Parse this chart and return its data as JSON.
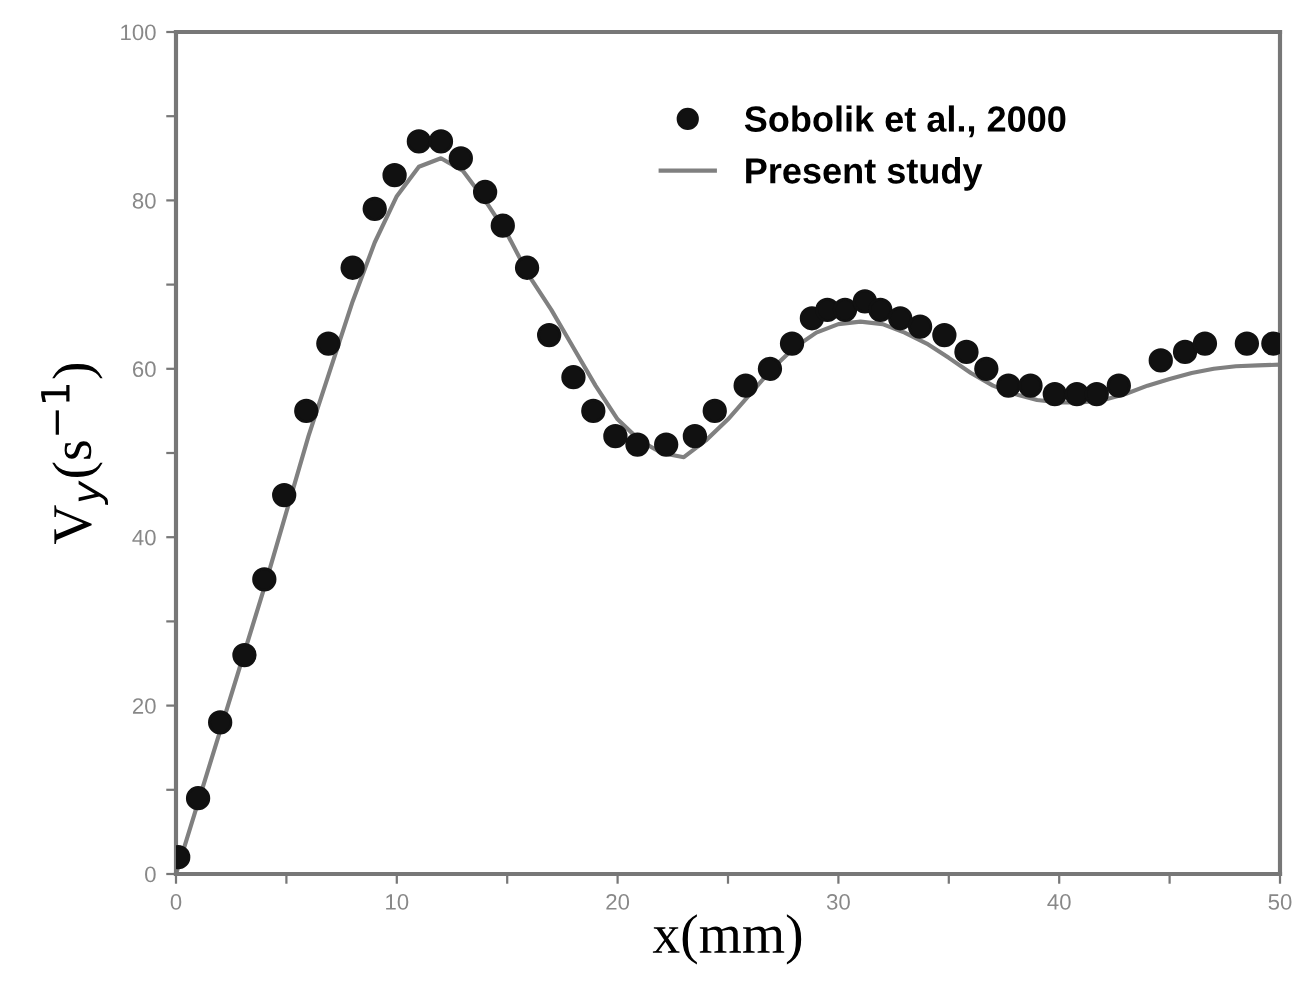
{
  "chart_data": {
    "type": "scatter",
    "xlabel": "x(mm)",
    "ylabel": "V$_{y}$(s$^{−1}$)",
    "xlim": [
      0,
      50
    ],
    "ylim": [
      0,
      100
    ],
    "xticks": [
      0,
      {
        "value": 5,
        "label": null
      },
      10,
      {
        "value": 15,
        "label": null
      },
      20,
      {
        "value": 25,
        "label": null
      },
      30,
      {
        "value": 35,
        "label": null
      },
      40,
      {
        "value": 45,
        "label": null
      },
      50
    ],
    "yticks": [
      0,
      {
        "value": 10,
        "label": null
      },
      20,
      {
        "value": 30,
        "label": null
      },
      40,
      {
        "value": 50,
        "label": null
      },
      60,
      {
        "value": 70,
        "label": null
      },
      80,
      {
        "value": 90,
        "label": null
      },
      100
    ],
    "grid": false,
    "legend": "top right",
    "series": [
      {
        "name": "Sobolik et al., 2000",
        "marker": "circle",
        "color": "#111111",
        "x": [
          0.1,
          1.0,
          2.0,
          3.1,
          4.0,
          4.9,
          5.9,
          6.9,
          8.0,
          9.0,
          9.9,
          11.0,
          12.0,
          12.9,
          14.0,
          14.8,
          15.9,
          16.9,
          18.0,
          18.9,
          19.9,
          20.9,
          22.2,
          23.5,
          24.4,
          25.8,
          26.9,
          27.9,
          28.8,
          29.5,
          30.3,
          31.2,
          31.9,
          32.8,
          33.7,
          34.8,
          35.8,
          36.7,
          37.7,
          38.7,
          39.8,
          40.8,
          41.7,
          42.7,
          44.6,
          45.7,
          46.6,
          48.5,
          49.7
        ],
        "values": [
          2,
          9,
          18,
          26,
          35,
          45,
          55,
          63,
          72,
          79,
          83,
          87,
          87,
          85,
          81,
          77,
          72,
          64,
          59,
          55,
          52,
          51,
          51,
          52,
          55,
          58,
          60,
          63,
          66,
          67,
          67,
          68,
          67,
          66,
          65,
          64,
          62,
          60,
          58,
          58,
          57,
          57,
          57,
          58,
          61,
          62,
          63,
          63,
          63
        ]
      },
      {
        "name": "Present study",
        "type": "line",
        "marker": "none",
        "line_style": "solid",
        "color": "#808080",
        "x": [
          0,
          2,
          4,
          6,
          8,
          9,
          10,
          11,
          12,
          13,
          14,
          15,
          16,
          17,
          18,
          19,
          20,
          21,
          22,
          23,
          24,
          25,
          26,
          27,
          28,
          29,
          30,
          31,
          32,
          33,
          34,
          35,
          36,
          37,
          38,
          39,
          40,
          41,
          42,
          43,
          44,
          45,
          46,
          47,
          48,
          49,
          50
        ],
        "values": [
          0,
          17,
          34,
          52,
          68,
          75,
          80.5,
          84,
          85,
          83.5,
          80,
          76,
          71,
          67,
          62.5,
          58,
          54,
          51.5,
          50,
          49.5,
          51.5,
          54,
          57,
          60,
          62.5,
          64.3,
          65.3,
          65.6,
          65.3,
          64.3,
          63,
          61.3,
          59.5,
          58,
          57,
          56.3,
          56,
          56,
          56.3,
          57,
          58,
          58.8,
          59.5,
          60,
          60.3,
          60.4,
          60.5
        ]
      }
    ]
  }
}
